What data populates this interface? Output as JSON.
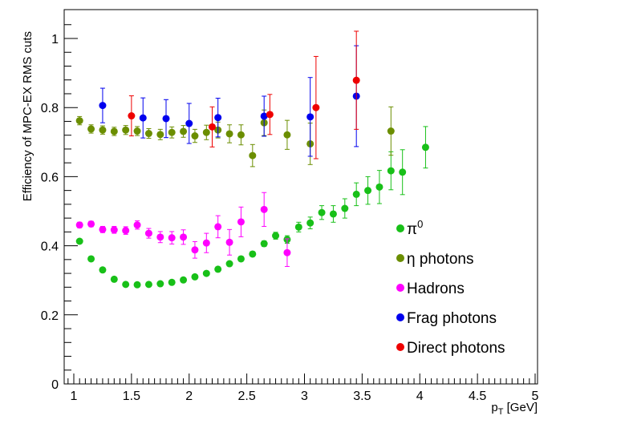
{
  "chart_data": {
    "type": "scatter",
    "title": "",
    "xlabel": "p_T [GeV]",
    "xlabel_main": "p",
    "xlabel_sub": "T",
    "xlabel_unit": " [GeV]",
    "ylabel": "Efficiency of MPC-EX RMS cuts",
    "xlim": [
      0.95,
      5.0
    ],
    "ylim": [
      0,
      1.05
    ],
    "grid": false,
    "legend_position": "bottom-right",
    "xticks": [
      1,
      1.5,
      2,
      2.5,
      3,
      3.5,
      4,
      4.5,
      5
    ],
    "xtick_labels": [
      "1",
      "1.5",
      "2",
      "2.5",
      "3",
      "3.5",
      "4",
      "4.5",
      "5"
    ],
    "yticks": [
      0,
      0.2,
      0.4,
      0.6,
      0.8,
      1
    ],
    "ytick_labels": [
      "0",
      "0.2",
      "0.4",
      "0.6",
      "0.8",
      "1"
    ],
    "series": [
      {
        "name": "pi0",
        "legend_label": "π",
        "legend_sup": "0",
        "color": "#18c018",
        "points": [
          [
            1.05,
            0.413,
            0.006
          ],
          [
            1.15,
            0.362,
            0.005
          ],
          [
            1.25,
            0.33,
            0.005
          ],
          [
            1.35,
            0.303,
            0.005
          ],
          [
            1.45,
            0.288,
            0.005
          ],
          [
            1.55,
            0.287,
            0.005
          ],
          [
            1.65,
            0.288,
            0.005
          ],
          [
            1.75,
            0.29,
            0.005
          ],
          [
            1.85,
            0.294,
            0.005
          ],
          [
            1.95,
            0.301,
            0.005
          ],
          [
            2.05,
            0.31,
            0.005
          ],
          [
            2.15,
            0.32,
            0.005
          ],
          [
            2.25,
            0.332,
            0.006
          ],
          [
            2.35,
            0.348,
            0.006
          ],
          [
            2.45,
            0.362,
            0.007
          ],
          [
            2.55,
            0.376,
            0.007
          ],
          [
            2.65,
            0.406,
            0.008
          ],
          [
            2.75,
            0.429,
            0.01
          ],
          [
            2.85,
            0.418,
            0.011
          ],
          [
            2.95,
            0.454,
            0.014
          ],
          [
            3.05,
            0.466,
            0.017
          ],
          [
            3.15,
            0.496,
            0.02
          ],
          [
            3.25,
            0.492,
            0.024
          ],
          [
            3.35,
            0.508,
            0.028
          ],
          [
            3.45,
            0.549,
            0.033
          ],
          [
            3.55,
            0.56,
            0.04
          ],
          [
            3.65,
            0.57,
            0.048
          ],
          [
            3.75,
            0.617,
            0.055
          ],
          [
            3.85,
            0.613,
            0.065
          ],
          [
            4.05,
            0.685,
            0.06
          ]
        ]
      },
      {
        "name": "eta_photons",
        "legend_label": "η photons",
        "legend_sup": "",
        "color": "#6b8e00",
        "points": [
          [
            1.05,
            0.762,
            0.012
          ],
          [
            1.15,
            0.738,
            0.012
          ],
          [
            1.25,
            0.735,
            0.012
          ],
          [
            1.35,
            0.731,
            0.012
          ],
          [
            1.45,
            0.735,
            0.013
          ],
          [
            1.55,
            0.732,
            0.013
          ],
          [
            1.65,
            0.725,
            0.014
          ],
          [
            1.75,
            0.722,
            0.015
          ],
          [
            1.85,
            0.728,
            0.016
          ],
          [
            1.95,
            0.731,
            0.017
          ],
          [
            2.05,
            0.718,
            0.019
          ],
          [
            2.15,
            0.728,
            0.021
          ],
          [
            2.25,
            0.735,
            0.023
          ],
          [
            2.35,
            0.724,
            0.026
          ],
          [
            2.45,
            0.721,
            0.029
          ],
          [
            2.55,
            0.661,
            0.032
          ],
          [
            2.65,
            0.756,
            0.037
          ],
          [
            2.85,
            0.721,
            0.042
          ],
          [
            3.05,
            0.695,
            0.06
          ],
          [
            3.75,
            0.732,
            0.07
          ]
        ]
      },
      {
        "name": "hadrons",
        "legend_label": "Hadrons",
        "legend_sup": "",
        "color": "#ff00ff",
        "points": [
          [
            1.05,
            0.46,
            0.008
          ],
          [
            1.15,
            0.463,
            0.008
          ],
          [
            1.25,
            0.447,
            0.009
          ],
          [
            1.35,
            0.446,
            0.01
          ],
          [
            1.45,
            0.444,
            0.011
          ],
          [
            1.55,
            0.46,
            0.012
          ],
          [
            1.65,
            0.436,
            0.014
          ],
          [
            1.75,
            0.425,
            0.016
          ],
          [
            1.85,
            0.423,
            0.018
          ],
          [
            1.95,
            0.425,
            0.021
          ],
          [
            2.05,
            0.388,
            0.024
          ],
          [
            2.15,
            0.408,
            0.028
          ],
          [
            2.25,
            0.455,
            0.032
          ],
          [
            2.35,
            0.41,
            0.037
          ],
          [
            2.45,
            0.469,
            0.043
          ],
          [
            2.65,
            0.505,
            0.049
          ],
          [
            2.85,
            0.38,
            0.04
          ]
        ]
      },
      {
        "name": "frag_photons",
        "legend_label": "Frag photons",
        "legend_sup": "",
        "color": "#0000ee",
        "points": [
          [
            1.25,
            0.806,
            0.05
          ],
          [
            1.6,
            0.77,
            0.058
          ],
          [
            1.8,
            0.768,
            0.055
          ],
          [
            2.0,
            0.754,
            0.058
          ],
          [
            2.25,
            0.771,
            0.056
          ],
          [
            2.65,
            0.775,
            0.058
          ],
          [
            3.05,
            0.773,
            0.114
          ],
          [
            3.45,
            0.833,
            0.146
          ]
        ]
      },
      {
        "name": "direct_photons",
        "legend_label": "Direct photons",
        "legend_sup": "",
        "color": "#ee0000",
        "points": [
          [
            1.5,
            0.776,
            0.058
          ],
          [
            2.2,
            0.744,
            0.058
          ],
          [
            2.7,
            0.78,
            0.058
          ],
          [
            3.1,
            0.8,
            0.148
          ],
          [
            3.45,
            0.879,
            0.142
          ]
        ]
      }
    ]
  }
}
